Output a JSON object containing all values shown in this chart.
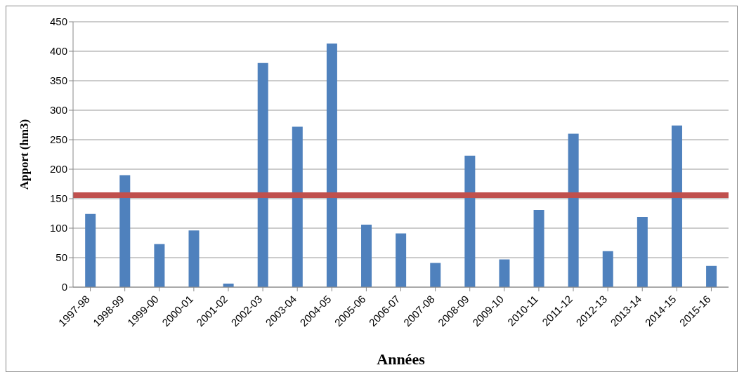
{
  "chart_data": {
    "type": "bar",
    "xlabel": "Années",
    "ylabel": "Apport (hm3)",
    "categories": [
      "1997-98",
      "1998-99",
      "1999-00",
      "2000-01",
      "2001-02",
      "2002-03",
      "2003-04",
      "2004-05",
      "2005-06",
      "2006-07",
      "2007-08",
      "2008-09",
      "2009-10",
      "2010-11",
      "2011-12",
      "2012-13",
      "2013-14",
      "2014-15",
      "2015-16"
    ],
    "values": [
      124,
      190,
      73,
      96,
      6,
      380,
      272,
      413,
      106,
      91,
      41,
      223,
      47,
      131,
      260,
      61,
      119,
      274,
      36
    ],
    "color": "#4f81bd",
    "ylim": [
      0,
      450
    ],
    "yticks": [
      0,
      50,
      100,
      150,
      200,
      250,
      300,
      350,
      400,
      450
    ],
    "grid": "y",
    "ref_lines": [
      {
        "axis": "y",
        "value": 156,
        "color": "#c0504d"
      }
    ]
  }
}
